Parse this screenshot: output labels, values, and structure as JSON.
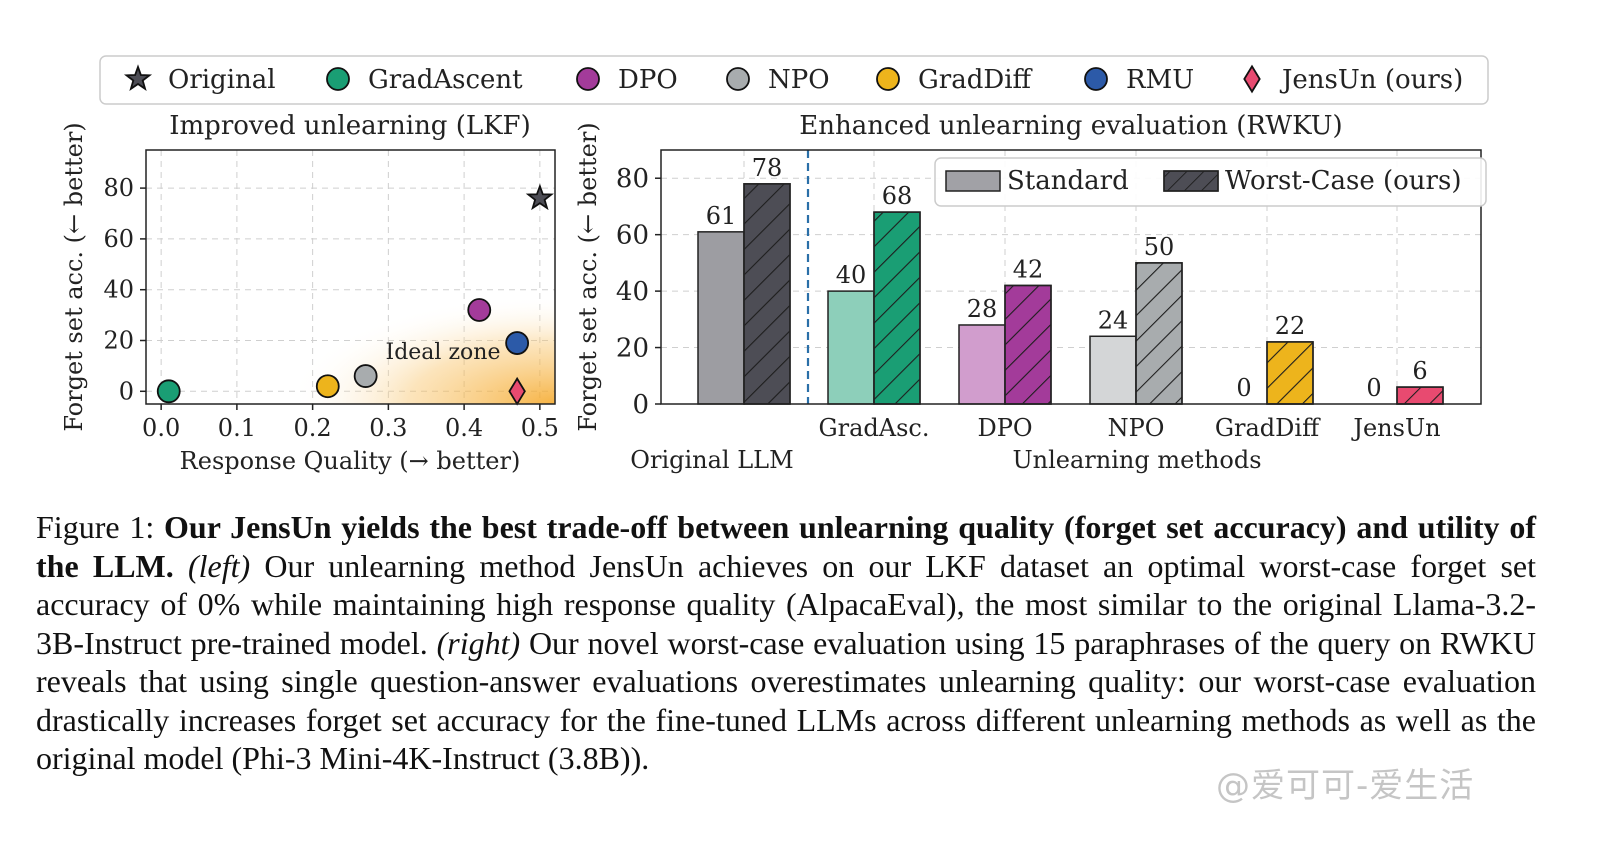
{
  "legend": {
    "items": [
      {
        "label": "Original",
        "marker": "star",
        "color": "#4d4d55"
      },
      {
        "label": "GradAscent",
        "marker": "circle",
        "color": "#1a9e74"
      },
      {
        "label": "DPO",
        "marker": "circle",
        "color": "#a33b9a"
      },
      {
        "label": "NPO",
        "marker": "circle",
        "color": "#a8acae"
      },
      {
        "label": "GradDiff",
        "marker": "circle",
        "color": "#edb41c"
      },
      {
        "label": "RMU",
        "marker": "circle",
        "color": "#2c5aa8"
      },
      {
        "label": "JensUn (ours)",
        "marker": "diamond",
        "color": "#e84a70"
      }
    ]
  },
  "chart_data": [
    {
      "type": "scatter",
      "title": "Improved unlearning (LKF)",
      "xlabel": "Response Quality (→ better)",
      "ylabel": "Forget set acc. (← better)",
      "xlim": [
        -0.02,
        0.52
      ],
      "ylim": [
        -5,
        95
      ],
      "xticks": [
        "0.0",
        "0.1",
        "0.2",
        "0.3",
        "0.4",
        "0.5"
      ],
      "yticks": [
        "0",
        "20",
        "40",
        "60",
        "80"
      ],
      "grid": true,
      "annotation": "Ideal zone",
      "points": [
        {
          "name": "Original",
          "x": 0.5,
          "y": 76,
          "marker": "star",
          "color": "#4d4d55"
        },
        {
          "name": "GradAscent",
          "x": 0.01,
          "y": 0,
          "marker": "circle",
          "color": "#1a9e74"
        },
        {
          "name": "DPO",
          "x": 0.42,
          "y": 32,
          "marker": "circle",
          "color": "#a33b9a"
        },
        {
          "name": "NPO",
          "x": 0.27,
          "y": 6,
          "marker": "circle",
          "color": "#a8acae"
        },
        {
          "name": "GradDiff",
          "x": 0.22,
          "y": 2,
          "marker": "circle",
          "color": "#edb41c"
        },
        {
          "name": "RMU",
          "x": 0.47,
          "y": 19,
          "marker": "circle",
          "color": "#2c5aa8"
        },
        {
          "name": "JensUn (ours)",
          "x": 0.47,
          "y": 0,
          "marker": "diamond",
          "color": "#e84a70"
        }
      ]
    },
    {
      "type": "bar",
      "title": "Enhanced unlearning evaluation (RWKU)",
      "ylabel": "Forget set acc. (← better)",
      "ylim": [
        0,
        90
      ],
      "yticks": [
        "0",
        "20",
        "40",
        "60",
        "80"
      ],
      "grid": true,
      "legend_position": "top-right",
      "categories": [
        "",
        "GradAsc.",
        "DPO",
        "NPO",
        "GradDiff",
        "JensUn"
      ],
      "group_labels": [
        "Original LLM",
        "Unlearning methods"
      ],
      "series": [
        {
          "name": "Standard",
          "values": [
            61,
            40,
            28,
            24,
            0,
            0
          ]
        },
        {
          "name": "Worst-Case (ours)",
          "values": [
            78,
            68,
            42,
            50,
            22,
            6
          ]
        }
      ],
      "category_colors": [
        "#4d4d55",
        "#1a9e74",
        "#a33b9a",
        "#a8acae",
        "#edb41c",
        "#e84a70"
      ],
      "legend_colors": {
        "Standard": "#a1a1a6",
        "Worst-Case (ours)": "#4d4d55"
      }
    }
  ],
  "caption": {
    "prefix": "Figure 1: ",
    "bold": "Our JensUn yields the best trade-off between unlearning quality (forget set accuracy) and utility of the LLM.",
    "left_tag": "(left)",
    "left_text": " Our unlearning method JensUn achieves on our LKF dataset an optimal worst-case forget set accuracy of 0% while maintaining high response quality (AlpacaEval), the most similar to the original Llama-3.2-3B-Instruct pre-trained model. ",
    "right_tag": "(right)",
    "right_text": " Our novel worst-case evaluation using 15 paraphrases of the query on RWKU reveals that using single question-answer evaluations overestimates unlearning quality: our worst-case evaluation drastically increases forget set accuracy for the fine-tuned LLMs across different unlearning methods as well as the original model (Phi-3 Mini-4K-Instruct (3.8B))."
  },
  "watermark": "@爱可可-爱生活"
}
